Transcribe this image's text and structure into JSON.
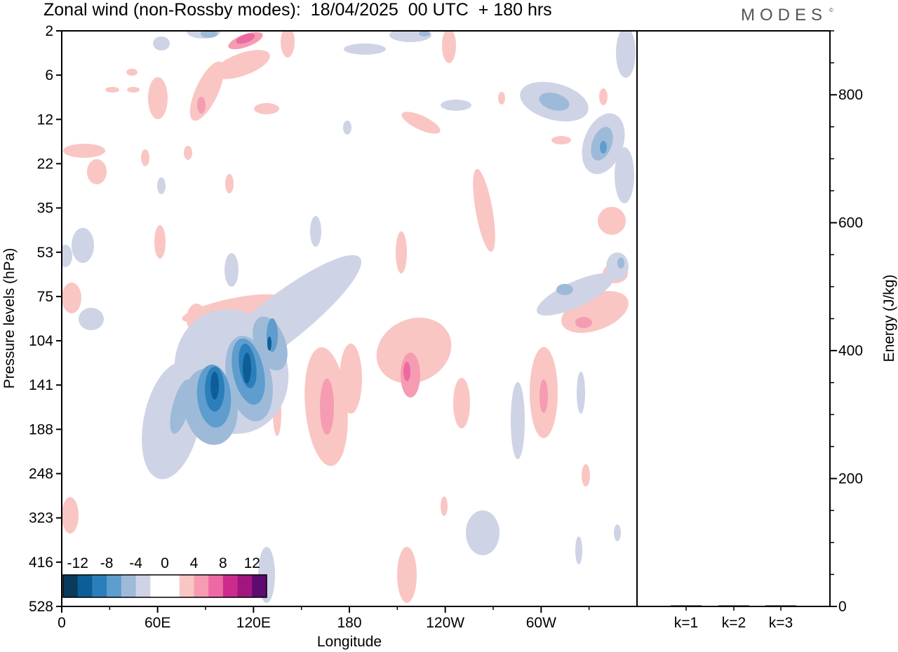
{
  "header": {
    "title": "Zonal wind (non-Rossby modes):  18/04/2025  00 UTC  + 180 hrs",
    "brand": "MODES",
    "brand_mark": "©"
  },
  "chart_data": [
    {
      "type": "heatmap",
      "title": "Zonal wind (non-Rossby modes):  18/04/2025  00 UTC  + 180 hrs",
      "xlabel": "Longitude",
      "ylabel": "Pressure levels (hPa)",
      "x_ticks": [
        "0",
        "60E",
        "120E",
        "180",
        "120W",
        "60W"
      ],
      "x_tick_degrees": [
        0,
        60,
        120,
        180,
        240,
        300
      ],
      "xlim": [
        0,
        360
      ],
      "y_ticks": [
        "2",
        "6",
        "12",
        "22",
        "35",
        "53",
        "75",
        "104",
        "141",
        "188",
        "248",
        "323",
        "416",
        "528"
      ],
      "colorbar": {
        "labels": [
          "-12",
          "-8",
          "-4",
          "0",
          "4",
          "8",
          "12"
        ],
        "colors": [
          "#0a3a5c",
          "#0d5e96",
          "#2a7fba",
          "#5e9dcd",
          "#9dbad9",
          "#cfd3e6",
          "#ffffff",
          "#ffffff",
          "#f9c6c3",
          "#f59cb2",
          "#ec6aa3",
          "#cc2b8e",
          "#a1167e",
          "#5e0a6e"
        ]
      },
      "features": [
        {
          "lon": 96,
          "level": "141",
          "value": -12
        },
        {
          "lon": 116,
          "level": "141",
          "value": -10
        },
        {
          "lon": 130,
          "level": "104",
          "value": -8
        },
        {
          "lon": 165,
          "level": "141",
          "value": 6
        },
        {
          "lon": 216,
          "level": "141",
          "value": 8
        },
        {
          "lon": 115,
          "level": "2",
          "value": 8
        },
        {
          "lon": 337,
          "level": "104",
          "value": 8
        },
        {
          "lon": 315,
          "level": "12",
          "value": -6
        }
      ]
    },
    {
      "type": "bar",
      "ylabel": "Energy (J/kg)",
      "categories": [
        "k=1",
        "k=2",
        "k=3"
      ],
      "values": [
        1,
        1,
        0
      ],
      "ylim": [
        0,
        900
      ],
      "y_ticks": [
        "0",
        "200",
        "400",
        "600",
        "800"
      ]
    }
  ]
}
